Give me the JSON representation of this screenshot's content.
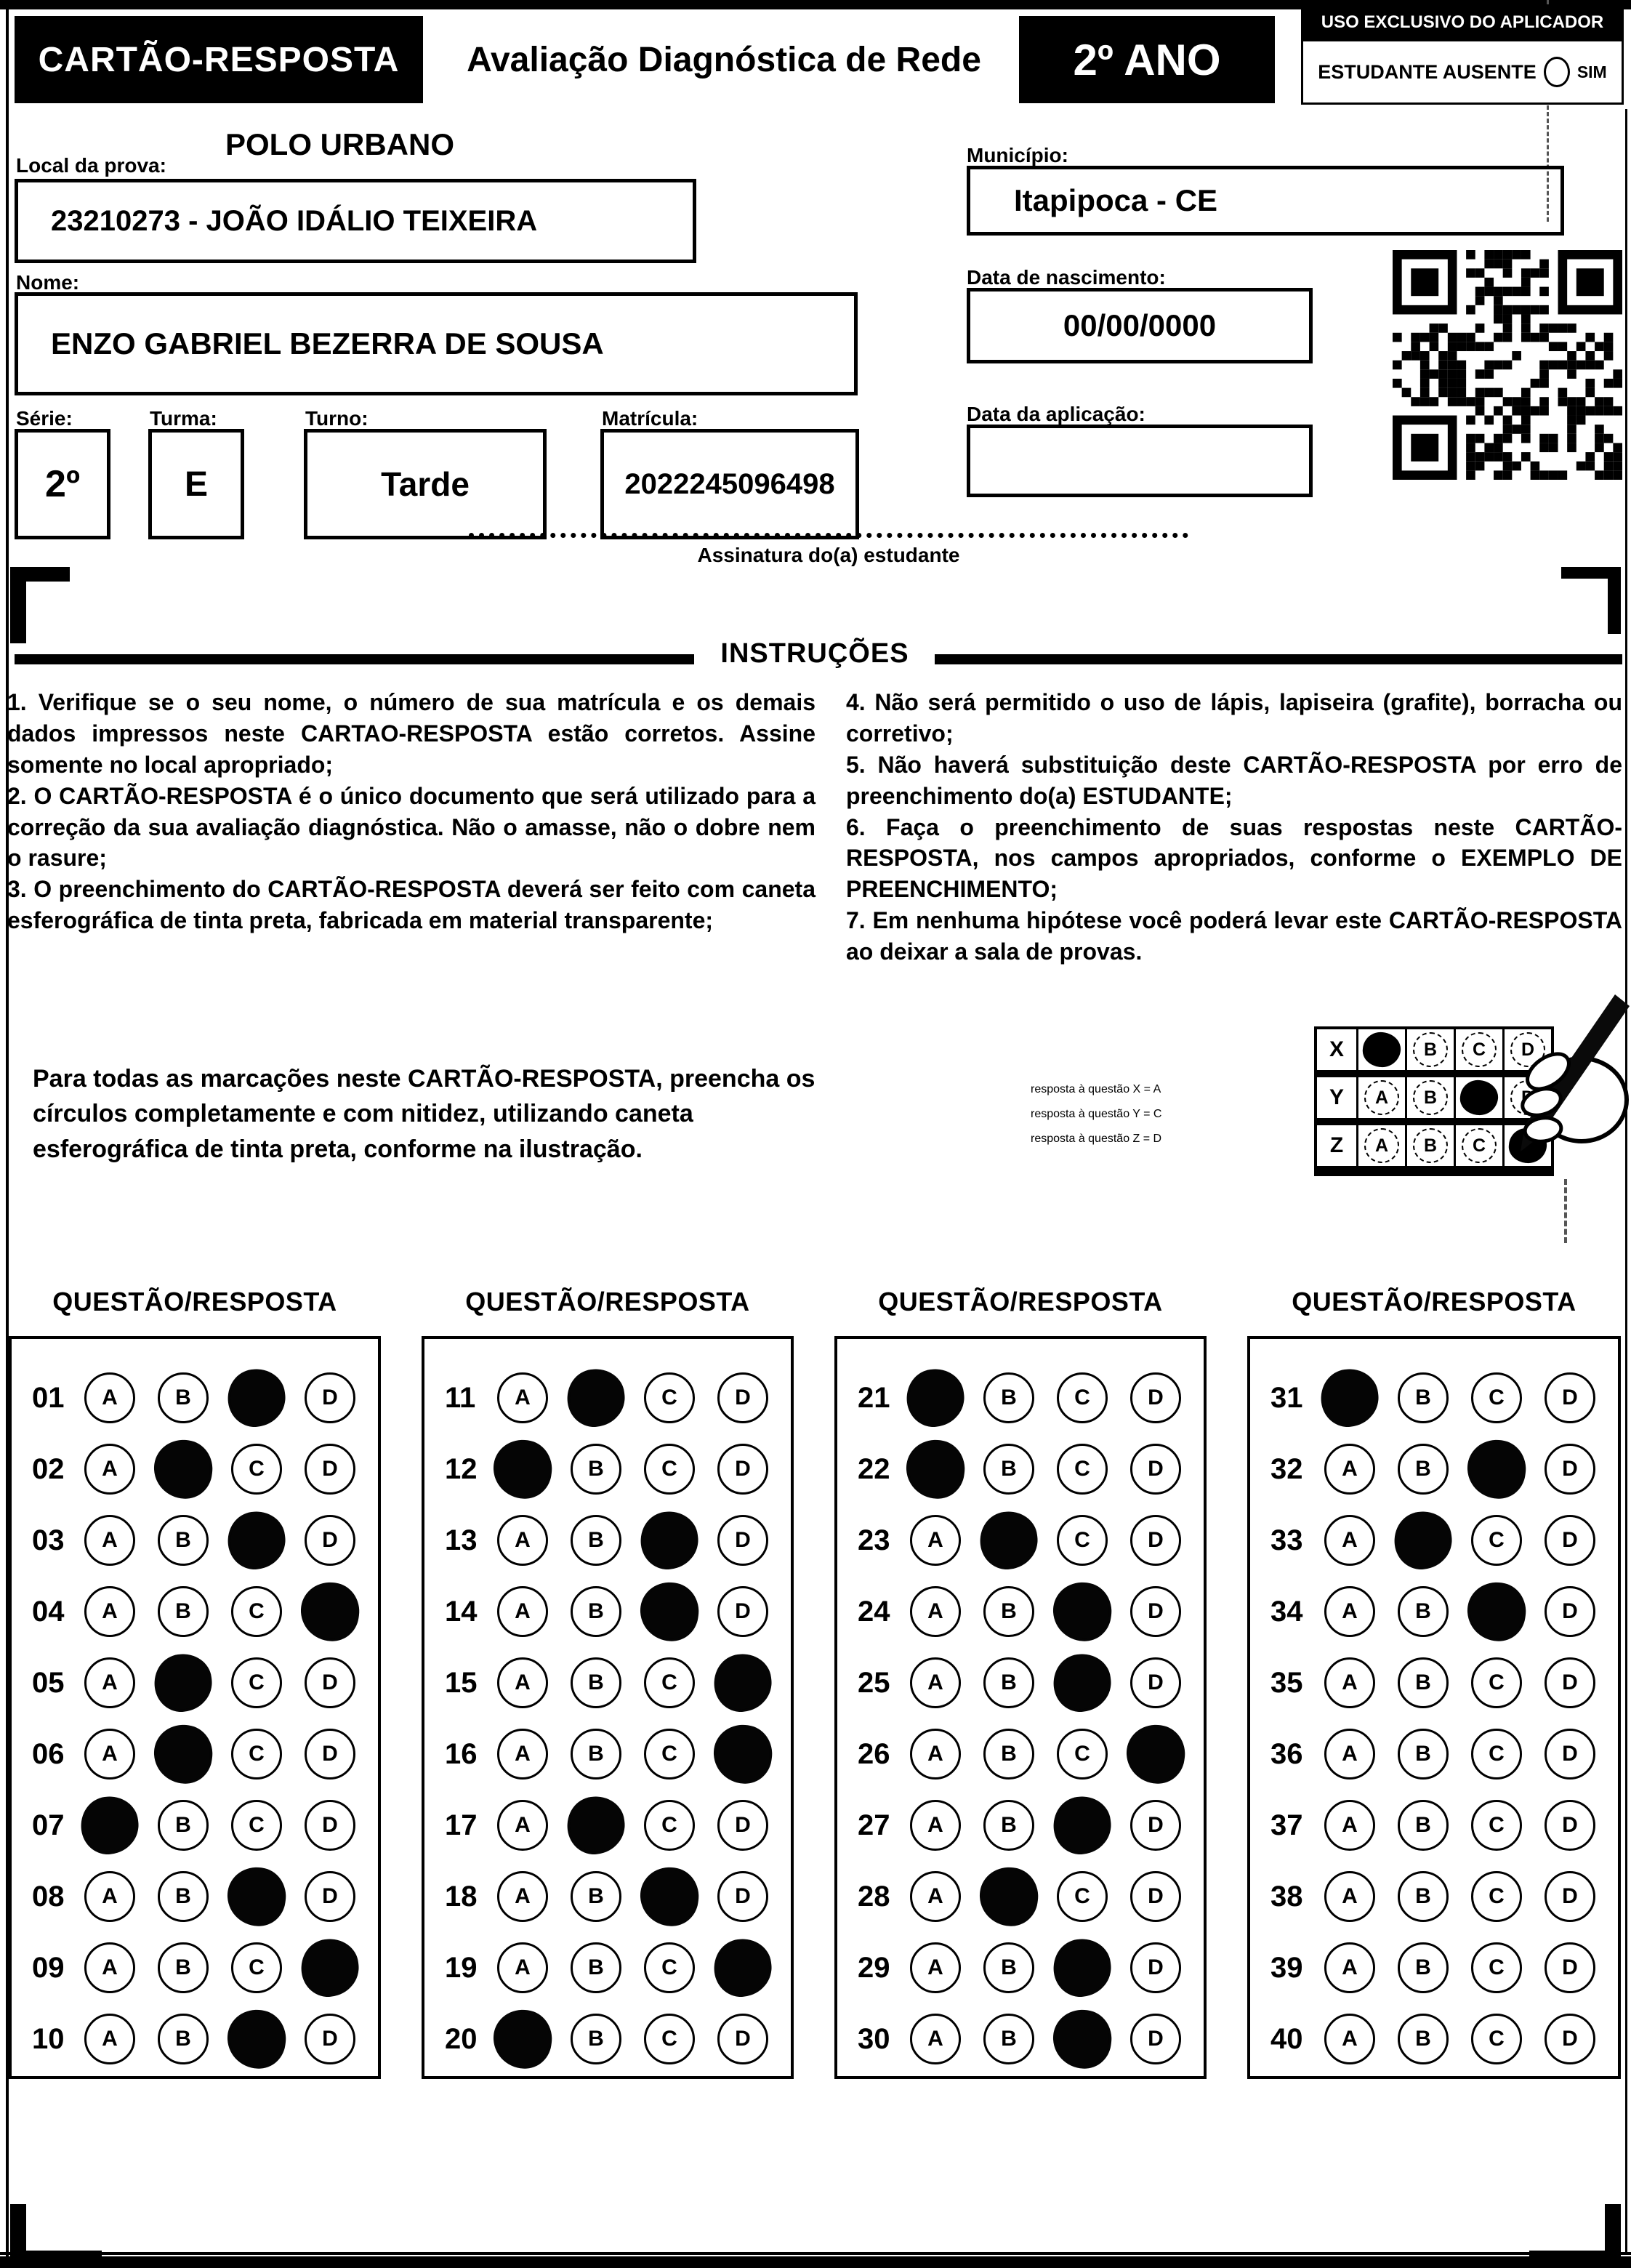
{
  "header": {
    "title": "CARTÃO-RESPOSTA",
    "subtitle": "Avaliação Diagnóstica de Rede",
    "grade": "2º ANO",
    "applicator_box": {
      "title": "USO EXCLUSIVO DO APLICADOR",
      "absent_label": "ESTUDANTE AUSENTE",
      "absent_option": "SIM"
    }
  },
  "student": {
    "local_label": "Local da prova:",
    "local_value": "POLO URBANO",
    "school": "23210273 - JOÃO IDÁLIO TEIXEIRA",
    "municipio_label": "Município:",
    "municipio_value": "Itapipoca - CE",
    "nome_label": "Nome:",
    "nome_value": "ENZO GABRIEL BEZERRA DE SOUSA",
    "nascimento_label": "Data de nascimento:",
    "nascimento_value": "00/00/0000",
    "serie_label": "Série:",
    "serie_value": "2º",
    "turma_label": "Turma:",
    "turma_value": "E",
    "turno_label": "Turno:",
    "turno_value": "Tarde",
    "matricula_label": "Matrícula:",
    "matricula_value": "2022245096498",
    "aplicacao_label": "Data da aplicação:",
    "aplicacao_value": "",
    "assinatura_label": "Assinatura do(a) estudante"
  },
  "instructions": {
    "title": "INSTRUÇÕES",
    "left": [
      "1. Verifique se o seu nome, o número de sua matrícula e os demais dados impressos neste CARTAO-RESPOSTA estão corretos. Assine somente no local apropriado;",
      "2. O CARTÃO-RESPOSTA é o único documento que será utilizado para a correção da sua avaliação diagnóstica. Não o amasse, não o dobre nem o rasure;",
      "3. O preenchimento do CARTÃO-RESPOSTA deverá ser feito com caneta esferográfica de tinta preta, fabricada em material transparente;"
    ],
    "right": [
      "4. Não será permitido o uso de lápis, lapiseira (grafite), borracha ou corretivo;",
      "5. Não haverá substituição deste CARTÃO-RESPOSTA por erro de preenchimento do(a) ESTUDANTE;",
      "6. Faça o preenchimento de suas respostas neste CARTÃO-RESPOSTA, nos campos apropriados, conforme o EXEMPLO DE PREENCHIMENTO;",
      "7. Em nenhuma hipótese você poderá levar este CARTÃO-RESPOSTA ao deixar a sala de provas."
    ],
    "fill_note": "Para todas as marcações neste CARTÃO-RESPOSTA, preencha os círculos completamente e com nitidez, utilizando caneta esferográfica de tinta preta, conforme na ilustração.",
    "example_legend": [
      "resposta à questão X = A",
      "resposta à questão Y = C",
      "resposta à questão Z = D"
    ],
    "example_grid": {
      "options": [
        "A",
        "B",
        "C",
        "D"
      ],
      "rows": [
        {
          "label": "X",
          "marked": "A"
        },
        {
          "label": "Y",
          "marked": "C"
        },
        {
          "label": "Z",
          "marked": "D"
        }
      ]
    }
  },
  "answers": {
    "column_header": "QUESTÃO/RESPOSTA",
    "options": [
      "A",
      "B",
      "C",
      "D"
    ],
    "columns": [
      {
        "questions": [
          {
            "n": "01",
            "marked": "C"
          },
          {
            "n": "02",
            "marked": "B"
          },
          {
            "n": "03",
            "marked": "C"
          },
          {
            "n": "04",
            "marked": "D"
          },
          {
            "n": "05",
            "marked": "B"
          },
          {
            "n": "06",
            "marked": "B"
          },
          {
            "n": "07",
            "marked": "A"
          },
          {
            "n": "08",
            "marked": "C"
          },
          {
            "n": "09",
            "marked": "D"
          },
          {
            "n": "10",
            "marked": "C"
          }
        ]
      },
      {
        "questions": [
          {
            "n": "11",
            "marked": "B"
          },
          {
            "n": "12",
            "marked": "A"
          },
          {
            "n": "13",
            "marked": "C"
          },
          {
            "n": "14",
            "marked": "C"
          },
          {
            "n": "15",
            "marked": "D"
          },
          {
            "n": "16",
            "marked": "D"
          },
          {
            "n": "17",
            "marked": "B"
          },
          {
            "n": "18",
            "marked": "C"
          },
          {
            "n": "19",
            "marked": "D"
          },
          {
            "n": "20",
            "marked": "A"
          }
        ]
      },
      {
        "questions": [
          {
            "n": "21",
            "marked": "A"
          },
          {
            "n": "22",
            "marked": "A"
          },
          {
            "n": "23",
            "marked": "B"
          },
          {
            "n": "24",
            "marked": "C"
          },
          {
            "n": "25",
            "marked": "C"
          },
          {
            "n": "26",
            "marked": "D"
          },
          {
            "n": "27",
            "marked": "C"
          },
          {
            "n": "28",
            "marked": "B"
          },
          {
            "n": "29",
            "marked": "C"
          },
          {
            "n": "30",
            "marked": "C"
          }
        ]
      },
      {
        "questions": [
          {
            "n": "31",
            "marked": "A"
          },
          {
            "n": "32",
            "marked": "C"
          },
          {
            "n": "33",
            "marked": "B"
          },
          {
            "n": "34",
            "marked": "C"
          },
          {
            "n": "35",
            "marked": null
          },
          {
            "n": "36",
            "marked": null
          },
          {
            "n": "37",
            "marked": null
          },
          {
            "n": "38",
            "marked": null
          },
          {
            "n": "39",
            "marked": null
          },
          {
            "n": "40",
            "marked": null
          }
        ]
      }
    ]
  },
  "colors": {
    "ink": "#000000",
    "paper": "#ffffff"
  }
}
